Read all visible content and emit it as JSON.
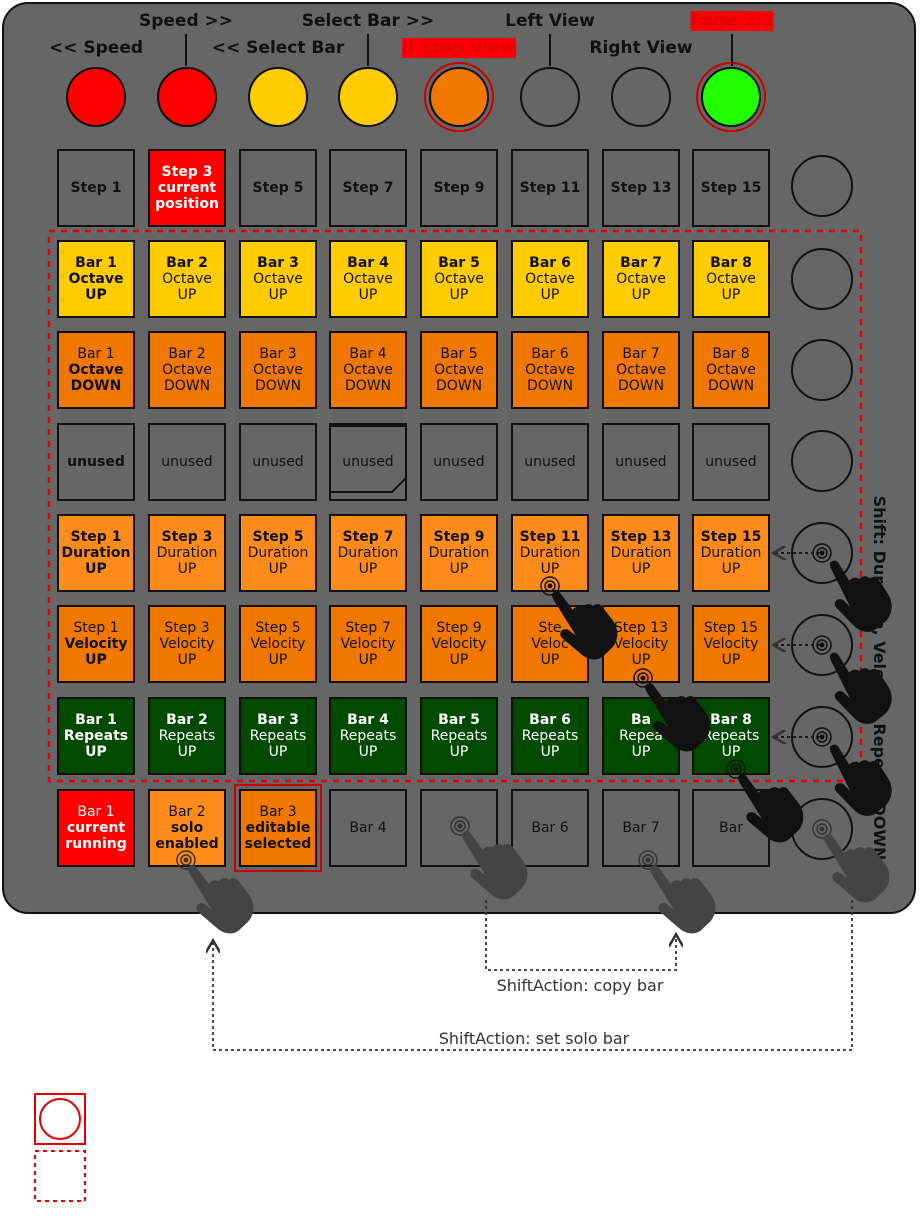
{
  "top_labels": {
    "row1": [
      "Speed >>",
      "Select Bar >>",
      "Left View",
      "Page 2/2"
    ],
    "row2": [
      "<< Speed",
      "<< Select Bar",
      "8 Step View",
      "Right View"
    ]
  },
  "top_buttons": [
    {
      "color": "#ff0000"
    },
    {
      "color": "#ff0000"
    },
    {
      "color": "#ffcc00"
    },
    {
      "color": "#ffcc00"
    },
    {
      "color": "#f07800",
      "ring": true
    },
    {
      "color": "#666666"
    },
    {
      "color": "#666666"
    },
    {
      "color": "#22ff00",
      "ring": true
    }
  ],
  "step_row": [
    "Step 1",
    [
      "Step 3",
      "current",
      "position"
    ],
    "Step 5",
    "Step 7",
    "Step 9",
    "Step 11",
    "Step 13",
    "Step 15"
  ],
  "octave_up": [
    {
      "a": "Bar 1",
      "b": "Octave",
      "c": "UP"
    },
    {
      "a": "Bar 2",
      "b": "Octave",
      "c": "UP"
    },
    {
      "a": "Bar 3",
      "b": "Octave",
      "c": "UP"
    },
    {
      "a": "Bar 4",
      "b": "Octave",
      "c": "UP"
    },
    {
      "a": "Bar 5",
      "b": "Octave",
      "c": "UP"
    },
    {
      "a": "Bar 6",
      "b": "Octave",
      "c": "UP"
    },
    {
      "a": "Bar 7",
      "b": "Octave",
      "c": "UP"
    },
    {
      "a": "Bar 8",
      "b": "Octave",
      "c": "UP"
    }
  ],
  "octave_down": [
    {
      "a": "Bar 1",
      "b": "Octave",
      "c": "DOWN"
    },
    {
      "a": "Bar 2",
      "b": "Octave",
      "c": "DOWN"
    },
    {
      "a": "Bar 3",
      "b": "Octave",
      "c": "DOWN"
    },
    {
      "a": "Bar 4",
      "b": "Octave",
      "c": "DOWN"
    },
    {
      "a": "Bar 5",
      "b": "Octave",
      "c": "DOWN"
    },
    {
      "a": "Bar 6",
      "b": "Octave",
      "c": "DOWN"
    },
    {
      "a": "Bar 7",
      "b": "Octave",
      "c": "DOWN"
    },
    {
      "a": "Bar 8",
      "b": "Octave",
      "c": "DOWN"
    }
  ],
  "unused_row": [
    "unused",
    "unused",
    "unused",
    "unused",
    "unused",
    "unused",
    "unused",
    "unused"
  ],
  "duration_row": [
    {
      "a": "Step 1",
      "b": "Duration",
      "c": "UP"
    },
    {
      "a": "Step 3",
      "b": "Duration",
      "c": "UP"
    },
    {
      "a": "Step 5",
      "b": "Duration",
      "c": "UP"
    },
    {
      "a": "Step 7",
      "b": "Duration",
      "c": "UP"
    },
    {
      "a": "Step 9",
      "b": "Duration",
      "c": "UP"
    },
    {
      "a": "Step 11",
      "b": "Duration",
      "c": "UP"
    },
    {
      "a": "Step 13",
      "b": "Duration",
      "c": "UP"
    },
    {
      "a": "Step 15",
      "b": "Duration",
      "c": "UP"
    }
  ],
  "velocity_row": [
    {
      "a": "Step 1",
      "b": "Velocity",
      "c": "UP"
    },
    {
      "a": "Step 3",
      "b": "Velocity",
      "c": "UP"
    },
    {
      "a": "Step 5",
      "b": "Velocity",
      "c": "UP"
    },
    {
      "a": "Step 7",
      "b": "Velocity",
      "c": "UP"
    },
    {
      "a": "Step 9",
      "b": "Velocity",
      "c": "UP"
    },
    {
      "a": "Ste",
      "b": "Veloc",
      "c": "UP"
    },
    {
      "a": "Step 13",
      "b": "Velocity",
      "c": "UP"
    },
    {
      "a": "Step 15",
      "b": "Velocity",
      "c": "UP"
    }
  ],
  "repeats_row": [
    {
      "a": "Bar 1",
      "b": "Repeats",
      "c": "UP"
    },
    {
      "a": "Bar 2",
      "b": "Repeats",
      "c": "UP"
    },
    {
      "a": "Bar 3",
      "b": "Repeats",
      "c": "UP"
    },
    {
      "a": "Bar 4",
      "b": "Repeats",
      "c": "UP"
    },
    {
      "a": "Bar 5",
      "b": "Repeats",
      "c": "UP"
    },
    {
      "a": "Bar 6",
      "b": "Repeats",
      "c": "UP"
    },
    {
      "a": "Ba",
      "b": "Repea",
      "c": "UP"
    },
    {
      "a": "Bar 8",
      "b": "Repeats",
      "c": "UP"
    }
  ],
  "bar_row": [
    {
      "a": "Bar 1",
      "b": "current",
      "c": "running"
    },
    {
      "a": "Bar 2",
      "b": "solo",
      "c": "enabled"
    },
    {
      "a": "Bar 3",
      "b": "editable",
      "c": "selected"
    },
    {
      "a": "Bar 4"
    },
    {
      "a": ""
    },
    {
      "a": "Bar 6"
    },
    {
      "a": "Bar 7"
    },
    {
      "a": "Bar"
    }
  ],
  "side_label": "Shift: Duration, Velocity, Repeats DOWN",
  "notes": {
    "copy_bar": "ShiftAction: copy bar",
    "set_solo": "ShiftAction: set solo bar"
  }
}
